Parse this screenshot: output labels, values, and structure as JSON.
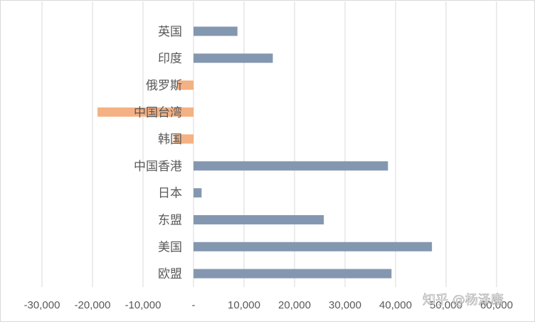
{
  "chart_data": {
    "type": "bar",
    "orientation": "horizontal",
    "categories": [
      "英国",
      "印度",
      "俄罗斯",
      "中国台湾",
      "韩国",
      "中国香港",
      "日本",
      "东盟",
      "美国",
      "欧盟"
    ],
    "values": [
      8700,
      15700,
      -3200,
      -19000,
      -3800,
      38500,
      1600,
      25800,
      47200,
      39200
    ],
    "xlim": [
      -30000,
      60000
    ],
    "xticks": [
      -30000,
      -20000,
      -10000,
      0,
      10000,
      20000,
      30000,
      40000,
      50000,
      60000
    ],
    "xtick_labels": [
      "-30,000",
      "-20,000",
      "-10,000",
      "-",
      "10,000",
      "20,000",
      "30,000",
      "40,000",
      "50,000",
      "60,000"
    ],
    "grid": "vertical",
    "colors": {
      "positive": "#8497b0",
      "negative": "#f4b183",
      "grid": "#d9d9d9",
      "text": "#595959"
    },
    "title": "",
    "xlabel": "",
    "ylabel": ""
  },
  "watermark": "知乎 @杨泽康"
}
